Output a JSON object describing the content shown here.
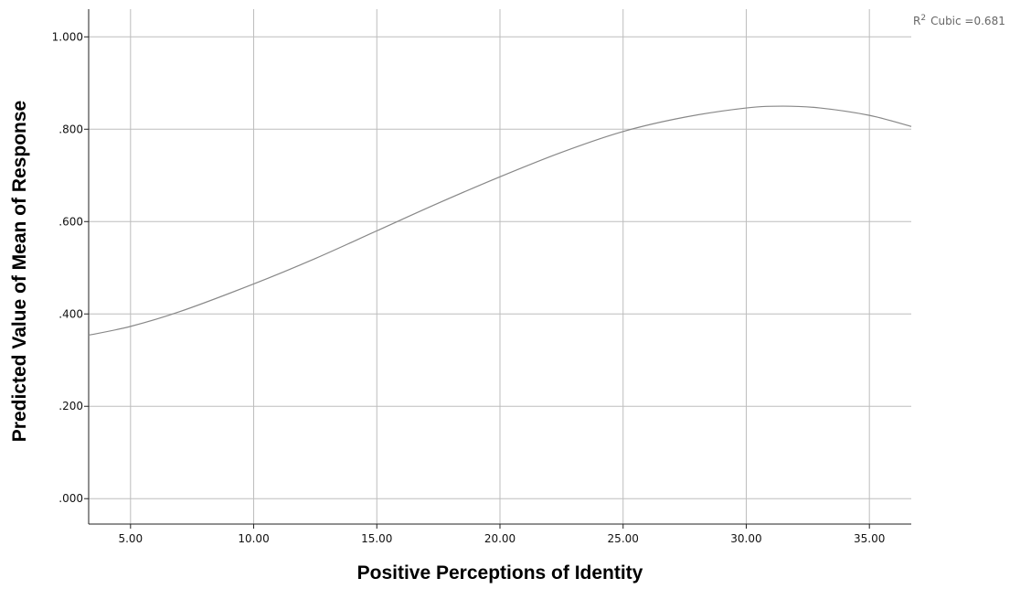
{
  "chart_data": {
    "type": "line",
    "xlabel": "Positive Perceptions of Identity",
    "ylabel": "Predicted Value of Mean of Response",
    "xlim": [
      3.3,
      36.7
    ],
    "ylim": [
      -0.055,
      1.06
    ],
    "x_ticks": [
      5,
      10,
      15,
      20,
      25,
      30,
      35
    ],
    "x_tick_labels": [
      "5.00",
      "10.00",
      "15.00",
      "20.00",
      "25.00",
      "30.00",
      "35.00"
    ],
    "y_ticks": [
      0,
      0.2,
      0.4,
      0.6,
      0.8,
      1.0
    ],
    "y_tick_labels": [
      ".000",
      ".200",
      ".400",
      ".600",
      ".800",
      "1.000"
    ],
    "grid": true,
    "annotation": {
      "r2_base": "R",
      "r2_sup": "2",
      "r2_text": "Cubic =0.681"
    },
    "series": [
      {
        "color": "#888888",
        "x": [
          3.3,
          5,
          7,
          10,
          12.5,
          15,
          17.5,
          20,
          22.5,
          25,
          27.5,
          30,
          31.5,
          33,
          35,
          36.7
        ],
        "y": [
          0.354,
          0.373,
          0.405,
          0.465,
          0.52,
          0.58,
          0.64,
          0.697,
          0.75,
          0.795,
          0.826,
          0.846,
          0.85,
          0.846,
          0.83,
          0.806
        ]
      }
    ]
  }
}
